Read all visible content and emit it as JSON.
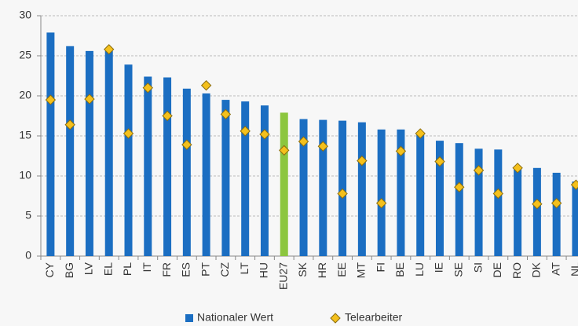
{
  "chart_data": {
    "type": "bar",
    "categories": [
      "CY",
      "BG",
      "LV",
      "EL",
      "PL",
      "IT",
      "FR",
      "ES",
      "PT",
      "CZ",
      "LT",
      "HU",
      "EU27",
      "SK",
      "HR",
      "EE",
      "MT",
      "FI",
      "BE",
      "LU",
      "IE",
      "SE",
      "SI",
      "DE",
      "RO",
      "DK",
      "AT",
      "NL"
    ],
    "series": [
      {
        "name": "Nationaler Wert",
        "color": "#1b6ec2",
        "colors": [
          "#1b6ec2",
          "#1b6ec2",
          "#1b6ec2",
          "#1b6ec2",
          "#1b6ec2",
          "#1b6ec2",
          "#1b6ec2",
          "#1b6ec2",
          "#1b6ec2",
          "#1b6ec2",
          "#1b6ec2",
          "#1b6ec2",
          "#8cc63f",
          "#1b6ec2",
          "#1b6ec2",
          "#1b6ec2",
          "#1b6ec2",
          "#1b6ec2",
          "#1b6ec2",
          "#1b6ec2",
          "#1b6ec2",
          "#1b6ec2",
          "#1b6ec2",
          "#1b6ec2",
          "#1b6ec2",
          "#1b6ec2",
          "#1b6ec2",
          "#1b6ec2"
        ],
        "values": [
          27.9,
          26.2,
          25.6,
          25.6,
          23.9,
          22.4,
          22.3,
          20.9,
          20.3,
          19.5,
          19.3,
          18.8,
          17.9,
          17.1,
          17.0,
          16.9,
          16.7,
          15.8,
          15.8,
          15.4,
          14.4,
          14.1,
          13.4,
          13.3,
          11.0,
          11.0,
          10.4,
          9.3
        ]
      },
      {
        "name": "Telearbeiter",
        "color": "#f4c01c",
        "marker": "diamond",
        "values": [
          19.5,
          16.4,
          19.6,
          25.8,
          15.3,
          21.0,
          17.5,
          13.9,
          21.3,
          17.7,
          15.6,
          15.2,
          13.2,
          14.3,
          13.7,
          7.8,
          11.9,
          6.6,
          13.1,
          15.3,
          11.8,
          8.6,
          10.7,
          7.8,
          11.0,
          6.5,
          6.6,
          8.9
        ]
      }
    ],
    "ylim": [
      0,
      30
    ],
    "yticks": [
      0,
      5,
      10,
      15,
      20,
      25,
      30
    ],
    "grid": true,
    "legend": "bottom"
  }
}
